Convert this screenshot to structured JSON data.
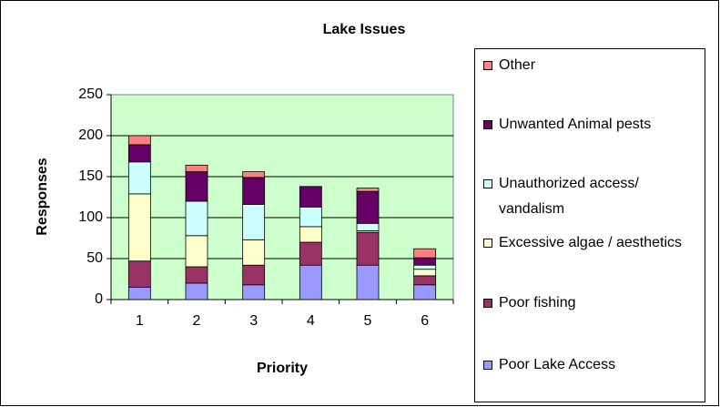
{
  "chart_data": {
    "type": "stacked_bar",
    "title": "Lake Issues",
    "x_label": "Priority",
    "y_label": "Responses",
    "categories": [
      "1",
      "2",
      "3",
      "4",
      "5",
      "6"
    ],
    "series": [
      {
        "name": "Poor Lake Access",
        "color": "#9999ff",
        "values": [
          15,
          20,
          18,
          42,
          42,
          18
        ]
      },
      {
        "name": "Poor fishing",
        "color": "#993366",
        "values": [
          32,
          20,
          24,
          28,
          40,
          11
        ]
      },
      {
        "name": "Excessive algae / aesthetics",
        "color": "#ffffcc",
        "values": [
          82,
          38,
          31,
          19,
          2,
          8
        ]
      },
      {
        "name": "Unauthorized access/ vandalism",
        "color": "#ccffff",
        "values": [
          39,
          42,
          43,
          24,
          9,
          5
        ]
      },
      {
        "name": "Unwanted Animal pests",
        "color": "#660066",
        "values": [
          21,
          36,
          33,
          25,
          39,
          9
        ]
      },
      {
        "name": "Other",
        "color": "#ff8080",
        "values": [
          11,
          8,
          7,
          0,
          4,
          11
        ]
      }
    ],
    "ylim": [
      0,
      250
    ],
    "yticks": [
      0,
      50,
      100,
      150,
      200,
      250
    ],
    "grid": true,
    "legend": "right"
  }
}
